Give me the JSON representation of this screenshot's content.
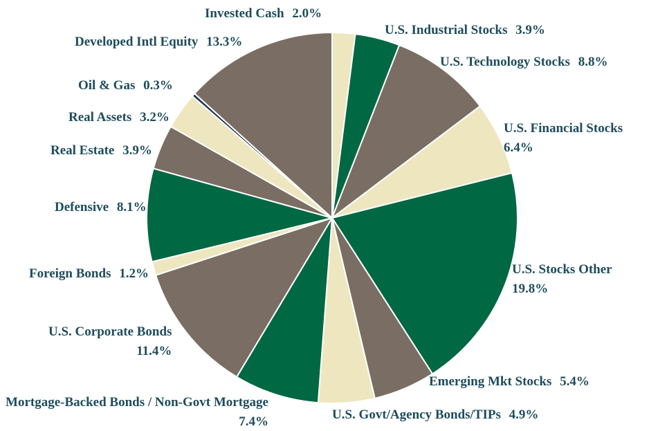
{
  "chart_data": {
    "type": "pie",
    "categories": [
      "Invested Cash",
      "U.S. Industrial Stocks",
      "U.S. Technology Stocks",
      "U.S. Financial Stocks",
      "U.S. Stocks Other",
      "Emerging Mkt Stocks",
      "U.S. Govt/Agency Bonds/TIPs",
      "Mortgage-Backed Bonds / Non-Govt Mortgage",
      "U.S. Corporate Bonds",
      "Foreign Bonds",
      "Defensive",
      "Real Estate",
      "Real Assets",
      "Oil & Gas",
      "Developed Intl Equity"
    ],
    "values": [
      2.0,
      3.9,
      8.8,
      6.4,
      19.8,
      5.4,
      4.9,
      7.4,
      11.4,
      1.2,
      8.1,
      3.9,
      3.2,
      0.3,
      13.3
    ],
    "value_labels": [
      "2.0%",
      "3.9%",
      "8.8%",
      "6.4%",
      "19.8%",
      "5.4%",
      "4.9%",
      "7.4%",
      "11.4%",
      "1.2%",
      "8.1%",
      "3.9%",
      "3.2%",
      "0.3%",
      "13.3%"
    ],
    "colors": [
      "#ede6bf",
      "#006843",
      "#7a6d63",
      "#ede6bf",
      "#006843",
      "#7a6d63",
      "#ede6bf",
      "#006843",
      "#7a6d63",
      "#ede6bf",
      "#006843",
      "#7a6d63",
      "#ede6bf",
      "#1f3a4d",
      "#7a6d63"
    ]
  }
}
